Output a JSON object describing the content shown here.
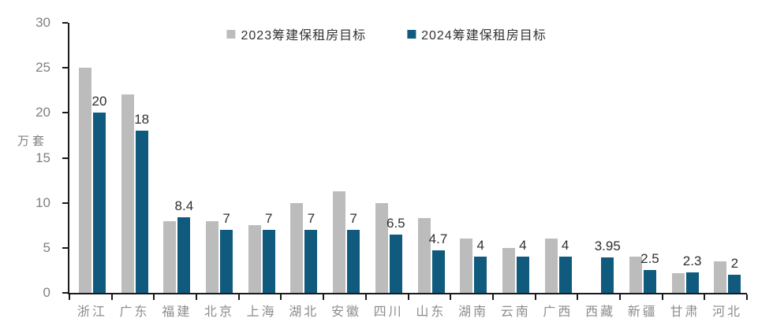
{
  "page": {
    "background": "#ffffff"
  },
  "legend": {
    "items": [
      {
        "label": "2023筹建保租房目标",
        "color": "#bcbcbc"
      },
      {
        "label": "2024筹建保租房目标",
        "color": "#0f5a7d"
      }
    ]
  },
  "chart_data": {
    "type": "bar",
    "title": "",
    "xlabel": "",
    "ylabel": "万套",
    "ylim": [
      0,
      30
    ],
    "yticks": [
      0,
      5,
      10,
      15,
      20,
      25,
      30
    ],
    "grid": false,
    "legend_position": "top-center",
    "categories": [
      "浙江",
      "广东",
      "福建",
      "北京",
      "上海",
      "湖北",
      "安徽",
      "四川",
      "山东",
      "湖南",
      "云南",
      "广西",
      "西藏",
      "新疆",
      "甘肃",
      "河北"
    ],
    "series": [
      {
        "name": "2023筹建保租房目标",
        "color": "#bcbcbc",
        "values": [
          25,
          22,
          8,
          8,
          7.5,
          10,
          11.3,
          10,
          8.3,
          6,
          5,
          6,
          null,
          4,
          2.2,
          3.5
        ],
        "data_labels_shown": false
      },
      {
        "name": "2024筹建保租房目标",
        "color": "#0f5a7d",
        "values": [
          20,
          18,
          8.4,
          7,
          7,
          7,
          7,
          6.5,
          4.7,
          4,
          4,
          4,
          3.95,
          2.5,
          2.3,
          2
        ],
        "data_labels_shown": true,
        "labels": [
          "20",
          "18",
          "8.4",
          "7",
          "7",
          "7",
          "7",
          "6.5",
          "4.7",
          "4",
          "4",
          "4",
          "3.95",
          "2.5",
          "2.3",
          "2"
        ]
      }
    ],
    "axis_colors": {
      "axis_line": "#1a1a1a",
      "tick_label": "#7f7f7f",
      "category_label": "#8c8c8c",
      "data_label": "#2f2f2f"
    }
  }
}
